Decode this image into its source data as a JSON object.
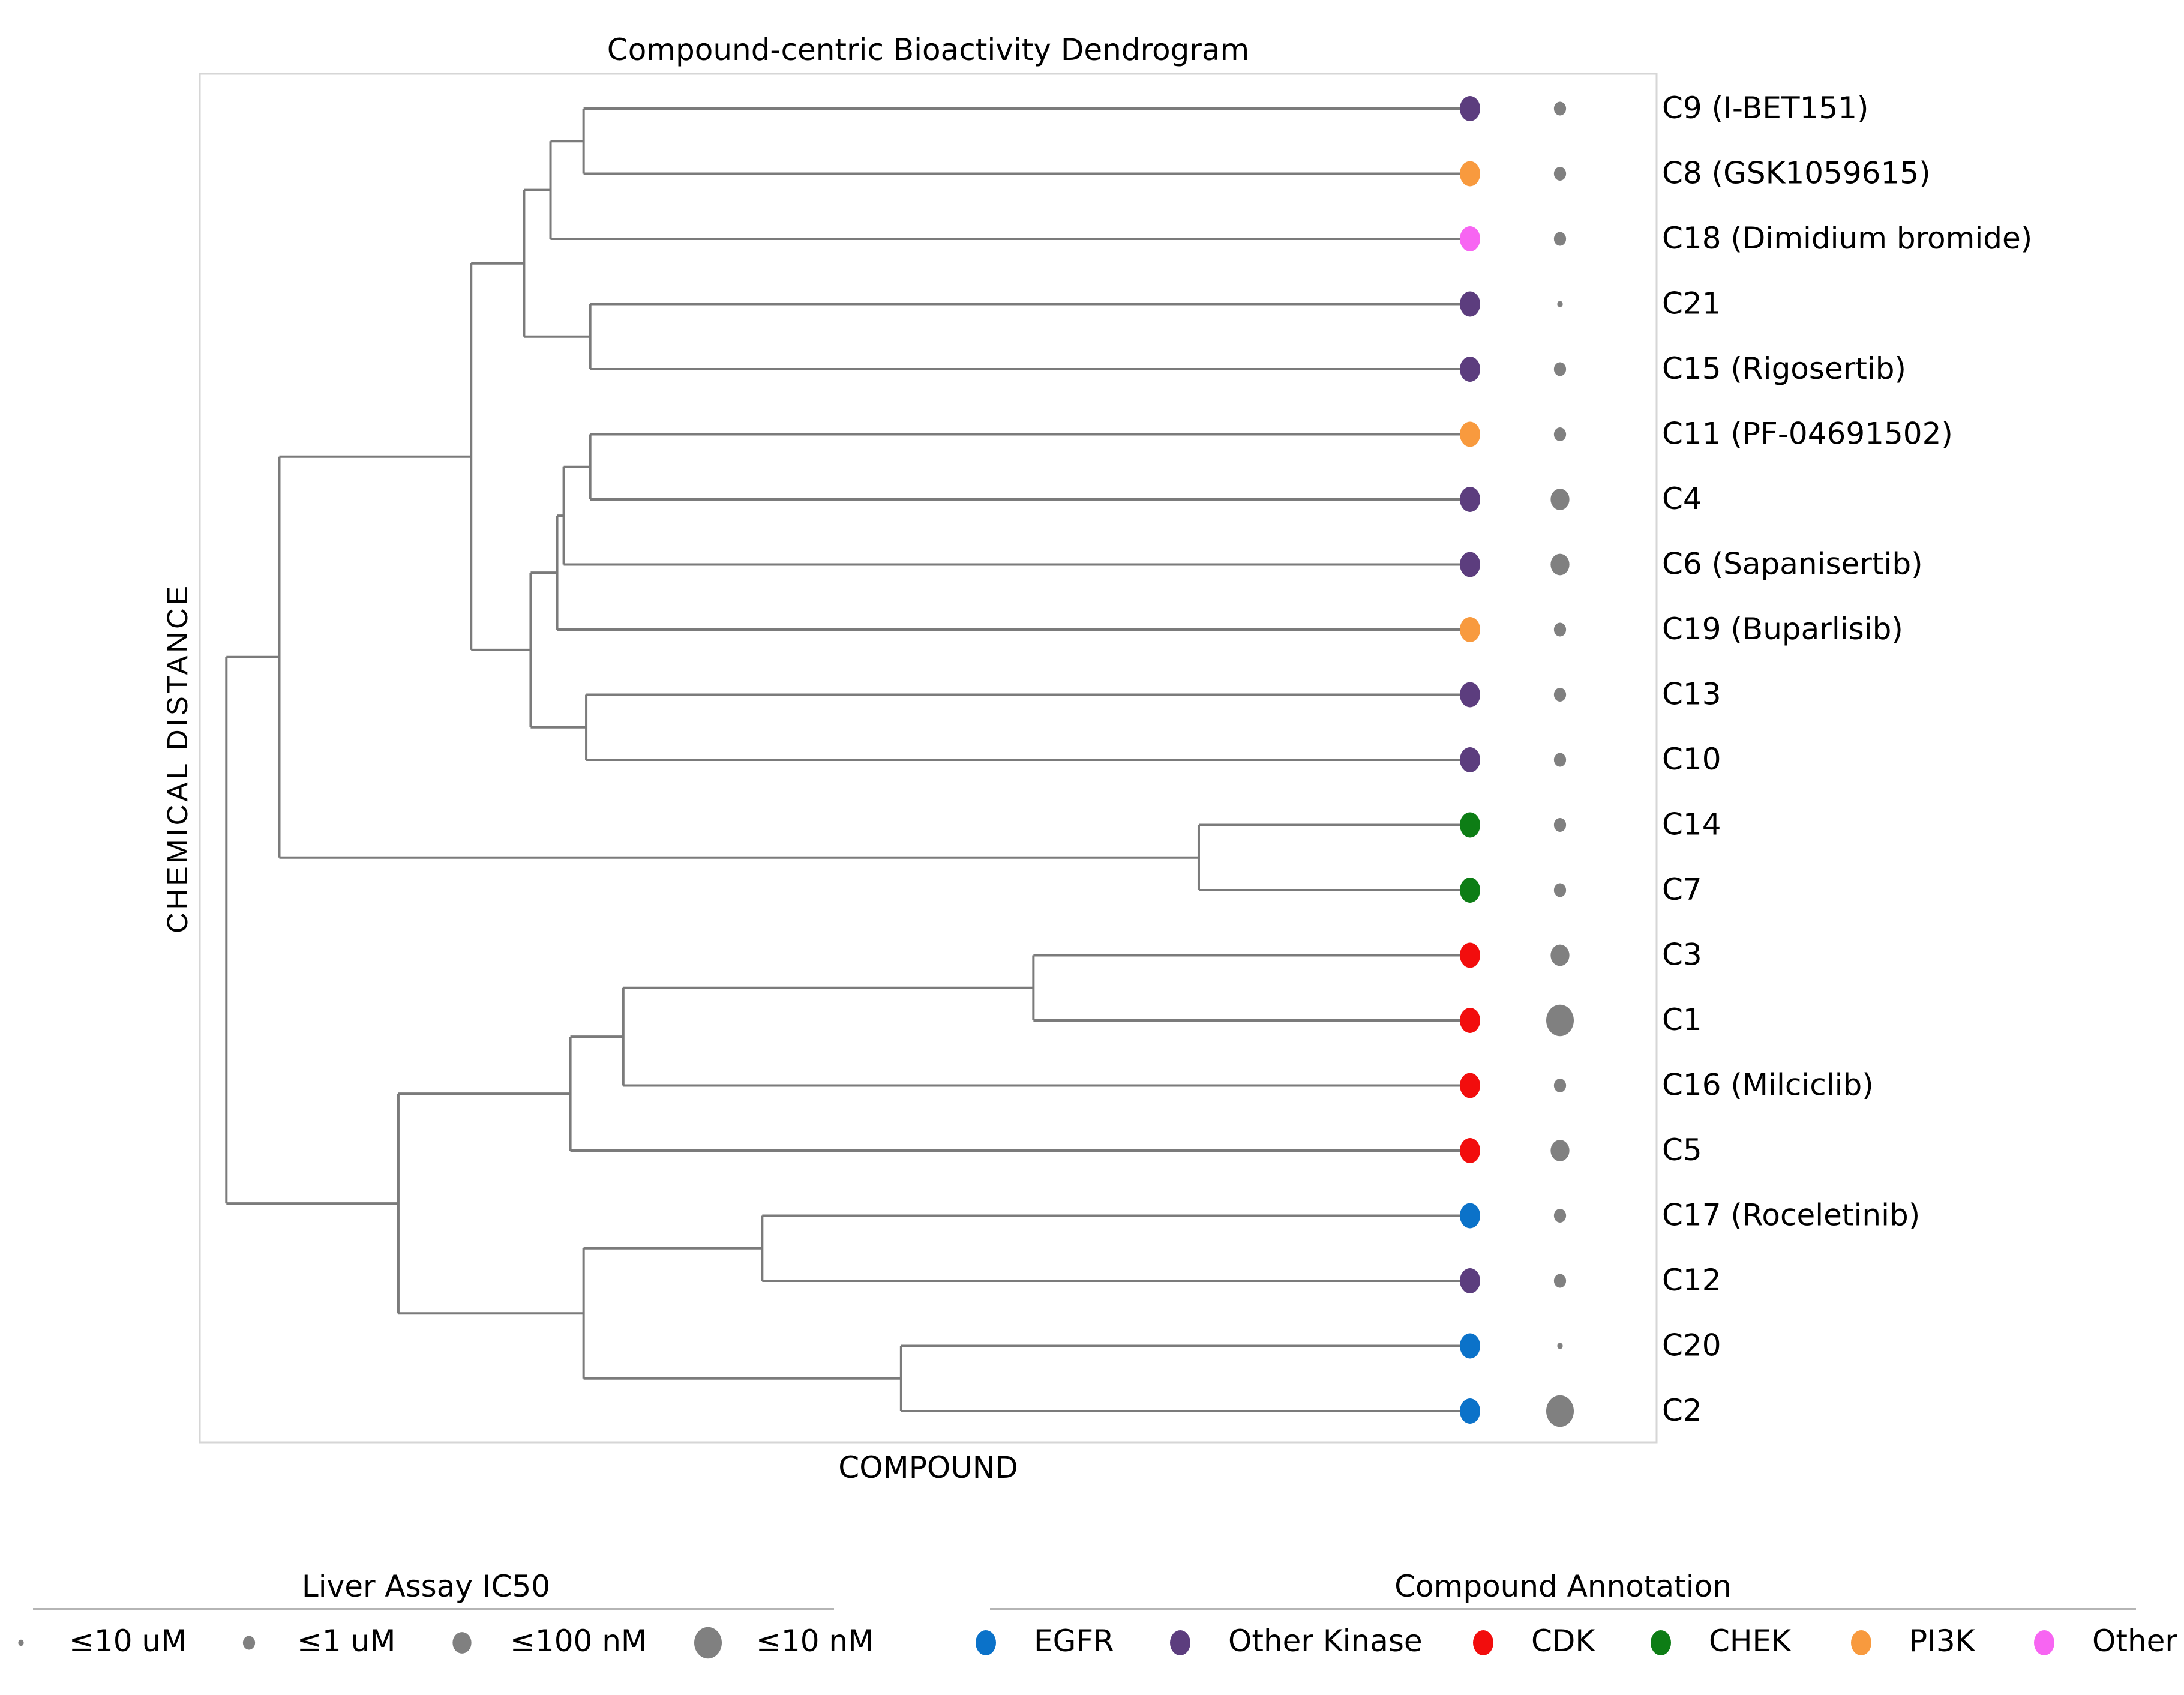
{
  "chart_data": {
    "type": "dendrogram",
    "title": "Compound-centric Bioactivity Dendrogram",
    "xlabel": "COMPOUND",
    "ylabel": "CHEMICAL DISTANCE",
    "branch_color": "#7b7b7b",
    "leaves": [
      {
        "label": "C9 (I-BET151)",
        "annotation": "Other Kinase",
        "ic50": "≤1 uM"
      },
      {
        "label": "C8 (GSK1059615)",
        "annotation": "PI3K",
        "ic50": "≤1 uM"
      },
      {
        "label": "C18 (Dimidium bromide)",
        "annotation": "Other",
        "ic50": "≤1 uM"
      },
      {
        "label": "C21",
        "annotation": "Other Kinase",
        "ic50": "≤10 uM"
      },
      {
        "label": "C15 (Rigosertib)",
        "annotation": "Other Kinase",
        "ic50": "≤1 uM"
      },
      {
        "label": "C11 (PF-04691502)",
        "annotation": "PI3K",
        "ic50": "≤1 uM"
      },
      {
        "label": "C4",
        "annotation": "Other Kinase",
        "ic50": "≤100 nM"
      },
      {
        "label": "C6 (Sapanisertib)",
        "annotation": "Other Kinase",
        "ic50": "≤100 nM"
      },
      {
        "label": "C19 (Buparlisib)",
        "annotation": "PI3K",
        "ic50": "≤1 uM"
      },
      {
        "label": "C13",
        "annotation": "Other Kinase",
        "ic50": "≤1 uM"
      },
      {
        "label": "C10",
        "annotation": "Other Kinase",
        "ic50": "≤1 uM"
      },
      {
        "label": "C14",
        "annotation": "CHEK",
        "ic50": "≤1 uM"
      },
      {
        "label": "C7",
        "annotation": "CHEK",
        "ic50": "≤1 uM"
      },
      {
        "label": "C3",
        "annotation": "CDK",
        "ic50": "≤100 nM"
      },
      {
        "label": "C1",
        "annotation": "CDK",
        "ic50": "≤10 nM"
      },
      {
        "label": "C16 (Milciclib)",
        "annotation": "CDK",
        "ic50": "≤1 uM"
      },
      {
        "label": "C5",
        "annotation": "CDK",
        "ic50": "≤100 nM"
      },
      {
        "label": "C17 (Roceletinib)",
        "annotation": "EGFR",
        "ic50": "≤1 uM"
      },
      {
        "label": "C12",
        "annotation": "Other Kinase",
        "ic50": "≤1 uM"
      },
      {
        "label": "C20",
        "annotation": "EGFR",
        "ic50": "≤10 uM"
      },
      {
        "label": "C2",
        "annotation": "EGFR",
        "ic50": "≤10 nM"
      }
    ],
    "merges": [
      {
        "leaves": [
          "C9 (I-BET151)",
          "C8 (GSK1059615)"
        ],
        "distance": 0.67
      },
      {
        "leaves": [
          "C9 (I-BET151)",
          "C8 (GSK1059615)",
          "C18 (Dimidium bromide)"
        ],
        "distance": 0.695
      },
      {
        "leaves": [
          "C21",
          "C15 (Rigosertib)"
        ],
        "distance": 0.665
      },
      {
        "leaves": [
          "C9 (I-BET151)",
          "C8 (GSK1059615)",
          "C18 (Dimidium bromide)",
          "C21",
          "C15 (Rigosertib)"
        ],
        "distance": 0.715
      },
      {
        "leaves": [
          "C11 (PF-04691502)",
          "C4"
        ],
        "distance": 0.665
      },
      {
        "leaves": [
          "C11 (PF-04691502)",
          "C4",
          "C6 (Sapanisertib)"
        ],
        "distance": 0.685
      },
      {
        "leaves": [
          "C11 (PF-04691502)",
          "C4",
          "C6 (Sapanisertib)",
          "C19 (Buparlisib)"
        ],
        "distance": 0.69
      },
      {
        "leaves": [
          "C13",
          "C10"
        ],
        "distance": 0.668
      },
      {
        "leaves": [
          "C11 (PF-04691502)",
          "C4",
          "C6 (Sapanisertib)",
          "C19 (Buparlisib)",
          "C13",
          "C10"
        ],
        "distance": 0.71
      },
      {
        "leaves": [
          "C9 (I-BET151)",
          "C8 (GSK1059615)",
          "C18 (Dimidium bromide)",
          "C21",
          "C15 (Rigosertib)",
          "C11 (PF-04691502)",
          "C4",
          "C6 (Sapanisertib)",
          "C19 (Buparlisib)",
          "C13",
          "C10"
        ],
        "distance": 0.755
      },
      {
        "leaves": [
          "C14",
          "C7"
        ],
        "distance": 0.205
      },
      {
        "leaves": [
          "C9 (I-BET151)",
          "C8 (GSK1059615)",
          "C18 (Dimidium bromide)",
          "C21",
          "C15 (Rigosertib)",
          "C11 (PF-04691502)",
          "C4",
          "C6 (Sapanisertib)",
          "C19 (Buparlisib)",
          "C13",
          "C10",
          "C14",
          "C7"
        ],
        "distance": 0.9
      },
      {
        "leaves": [
          "C3",
          "C1"
        ],
        "distance": 0.33
      },
      {
        "leaves": [
          "C3",
          "C1",
          "C16 (Milciclib)"
        ],
        "distance": 0.64
      },
      {
        "leaves": [
          "C3",
          "C1",
          "C16 (Milciclib)",
          "C5"
        ],
        "distance": 0.68
      },
      {
        "leaves": [
          "C17 (Roceletinib)",
          "C12"
        ],
        "distance": 0.535
      },
      {
        "leaves": [
          "C20",
          "C2"
        ],
        "distance": 0.43
      },
      {
        "leaves": [
          "C17 (Roceletinib)",
          "C12",
          "C20",
          "C2"
        ],
        "distance": 0.67
      },
      {
        "leaves": [
          "C3",
          "C1",
          "C16 (Milciclib)",
          "C5",
          "C17 (Roceletinib)",
          "C12",
          "C20",
          "C2"
        ],
        "distance": 0.81
      },
      {
        "leaves": [
          "all"
        ],
        "distance": 0.94
      }
    ],
    "size_legend": {
      "title": "Liver Assay IC50",
      "entries": [
        "≤10 uM",
        "≤1 uM",
        "≤100 nM",
        "≤10 nM"
      ],
      "levels": [
        1,
        2,
        3,
        4
      ]
    },
    "color_legend": {
      "title": "Compound Annotation",
      "entries": [
        {
          "label": "EGFR",
          "color": "#0b72c9"
        },
        {
          "label": "Other Kinase",
          "color": "#5c3d7e"
        },
        {
          "label": "CDK",
          "color": "#f20d0d"
        },
        {
          "label": "CHEK",
          "color": "#0d7d15"
        },
        {
          "label": "PI3K",
          "color": "#f89a3e"
        },
        {
          "label": "Other",
          "color": "#f765f2"
        }
      ]
    }
  }
}
